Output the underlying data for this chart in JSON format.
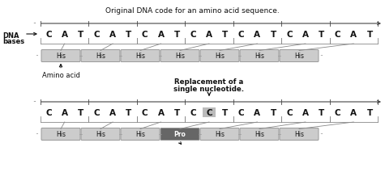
{
  "title_top": "Original DNA code for an amino acid sequence.",
  "dna_label_line1": "DNA",
  "dna_label_line2": "bases",
  "amino_acid_label": "Amino acid",
  "mutation_label_line1": "Replacement of a",
  "mutation_label_line2": "single nucleotide.",
  "original_bases": [
    "C",
    "A",
    "T",
    "C",
    "A",
    "T",
    "C",
    "A",
    "T",
    "C",
    "A",
    "T",
    "C",
    "A",
    "T",
    "C",
    "A",
    "T",
    "C",
    "A",
    "T"
  ],
  "mutated_bases": [
    "C",
    "A",
    "T",
    "C",
    "A",
    "T",
    "C",
    "A",
    "T",
    "C",
    "C",
    "T",
    "C",
    "A",
    "T",
    "C",
    "A",
    "T",
    "C",
    "A",
    "T"
  ],
  "mutated_index": 10,
  "amino_acids_top": [
    "His",
    "His",
    "His",
    "His",
    "His",
    "His",
    "His"
  ],
  "amino_acids_bot": [
    "His",
    "His",
    "His",
    "Pro",
    "His",
    "His",
    "His"
  ],
  "pro_index": 3,
  "box_color_his": "#cccccc",
  "box_color_pro": "#666666",
  "text_color_dark": "#111111",
  "text_color_white": "#ffffff",
  "ruler_color": "#444444",
  "highlight_color": "#bbbbbb",
  "line_color": "#888888"
}
